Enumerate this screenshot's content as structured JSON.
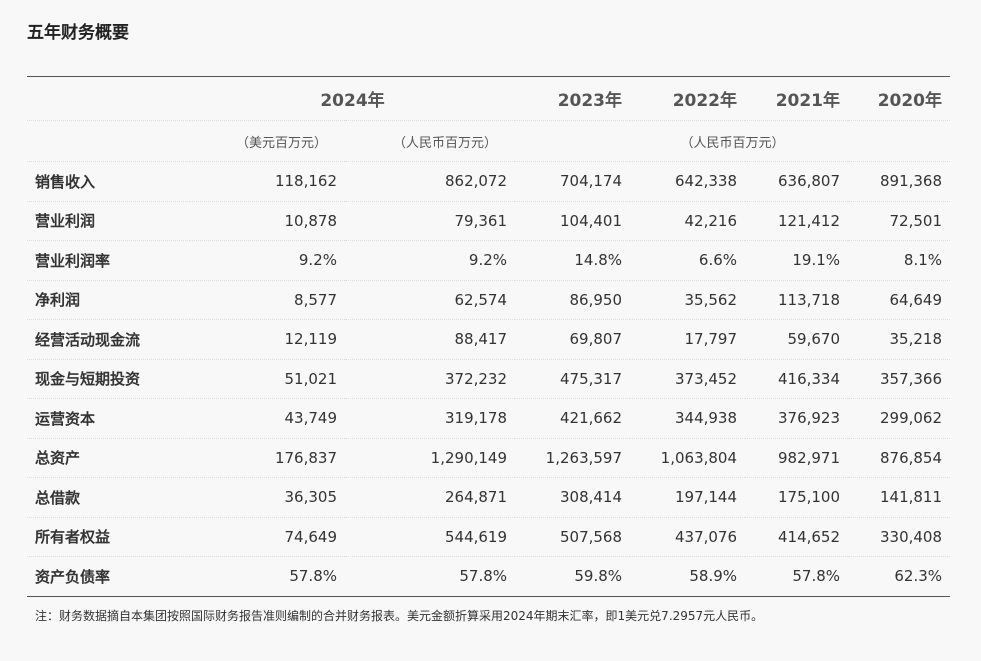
{
  "title": "五年财务概要",
  "table": {
    "years": [
      "2024年",
      "2023年",
      "2022年",
      "2021年",
      "2020年"
    ],
    "units": [
      "（美元百万元）",
      "（人民币百万元）",
      "（人民币百万元）"
    ],
    "rows": [
      [
        "销售收入",
        "118,162",
        "862,072",
        "704,174",
        "642,338",
        "636,807",
        "891,368"
      ],
      [
        "营业利润",
        "10,878",
        "79,361",
        "104,401",
        "42,216",
        "121,412",
        "72,501"
      ],
      [
        "营业利润率",
        "9.2%",
        "9.2%",
        "14.8%",
        "6.6%",
        "19.1%",
        "8.1%"
      ],
      [
        "净利润",
        "8,577",
        "62,574",
        "86,950",
        "35,562",
        "113,718",
        "64,649"
      ],
      [
        "经营活动现金流",
        "12,119",
        "88,417",
        "69,807",
        "17,797",
        "59,670",
        "35,218"
      ],
      [
        "现金与短期投资",
        "51,021",
        "372,232",
        "475,317",
        "373,452",
        "416,334",
        "357,366"
      ],
      [
        "运营资本",
        "43,749",
        "319,178",
        "421,662",
        "344,938",
        "376,923",
        "299,062"
      ],
      [
        "总资产",
        "176,837",
        "1,290,149",
        "1,263,597",
        "1,063,804",
        "982,971",
        "876,854"
      ],
      [
        "总借款",
        "36,305",
        "264,871",
        "308,414",
        "197,144",
        "175,100",
        "141,811"
      ],
      [
        "所有者权益",
        "74,649",
        "544,619",
        "507,568",
        "437,076",
        "414,652",
        "330,408"
      ],
      [
        "资产负债率",
        "57.8%",
        "57.8%",
        "59.8%",
        "58.9%",
        "57.8%",
        "62.3%"
      ]
    ]
  },
  "note": "注：财务数据摘自本集团按照国际财务报告准则编制的合并财务报表。美元金额折算采用2024年期末汇率，即1美元兑7.2957元人民币。"
}
